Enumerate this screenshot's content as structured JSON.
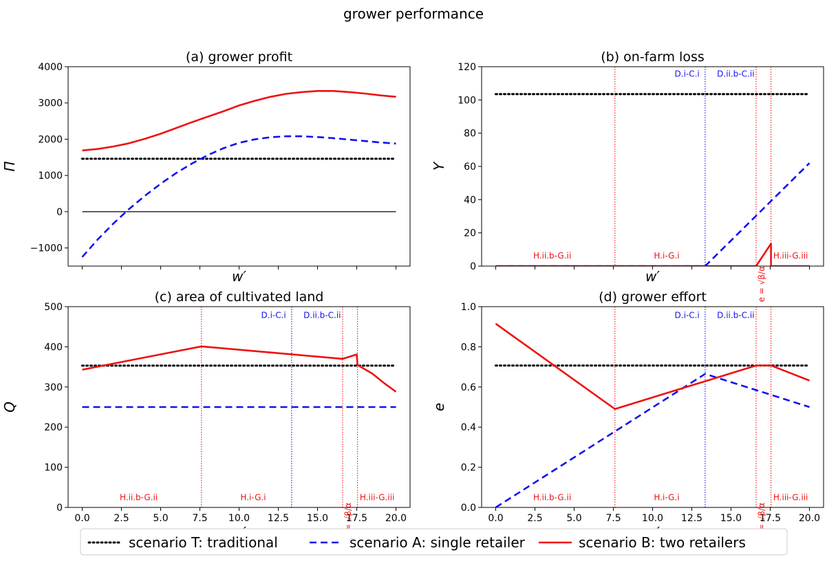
{
  "suptitle": "grower performance",
  "colors": {
    "traditional": "#000000",
    "single": "#1010ee",
    "two": "#ee1010"
  },
  "legend": [
    {
      "key": "traditional",
      "label": "scenario T: traditional",
      "style": "dotted"
    },
    {
      "key": "single",
      "label": "scenario A: single retailer",
      "style": "dashed"
    },
    {
      "key": "two",
      "label": "scenario B: two retailers",
      "style": "solid"
    }
  ],
  "chart_data": [
    {
      "id": "a",
      "type": "line",
      "title": "(a) grower profit",
      "xlabel": "w′",
      "ylabel": "Π",
      "xlim": [
        -0.9,
        20.9
      ],
      "ylim": [
        -1500,
        4000
      ],
      "yticks": [
        -1000,
        0,
        1000,
        2000,
        3000,
        4000
      ],
      "yticklabels": [
        "−1000",
        "0",
        "1000",
        "2000",
        "3000",
        "4000"
      ],
      "xticks": [
        0,
        2.5,
        5,
        7.5,
        10,
        12.5,
        15,
        17.5,
        20
      ],
      "show_xticklabels": false,
      "hlines": [
        {
          "y": 0,
          "color": "#000000",
          "width": 1.2
        }
      ],
      "series": [
        {
          "key": "traditional",
          "x": [
            0,
            20
          ],
          "y": [
            1460,
            1460
          ]
        },
        {
          "key": "single",
          "x": [
            0,
            1,
            2,
            3,
            4,
            5,
            6,
            7,
            8,
            9,
            10,
            11,
            12,
            13,
            14,
            15,
            16,
            17,
            18,
            19,
            20
          ],
          "y": [
            -1250,
            -760,
            -320,
            80,
            440,
            770,
            1070,
            1330,
            1560,
            1750,
            1900,
            1995,
            2055,
            2080,
            2080,
            2060,
            2030,
            1990,
            1950,
            1910,
            1880
          ]
        },
        {
          "key": "two",
          "x": [
            0,
            1,
            2,
            3,
            4,
            5,
            6,
            7,
            7.6,
            9,
            10,
            11,
            12,
            13,
            14,
            15,
            16,
            17,
            18,
            19,
            20
          ],
          "y": [
            1690,
            1730,
            1800,
            1890,
            2010,
            2150,
            2310,
            2470,
            2560,
            2770,
            2930,
            3060,
            3170,
            3250,
            3300,
            3330,
            3330,
            3300,
            3260,
            3210,
            3170
          ]
        }
      ],
      "vlines": [],
      "annotations": []
    },
    {
      "id": "b",
      "type": "line",
      "title": "(b) on-farm loss",
      "xlabel": "w′",
      "ylabel": "Y",
      "xlim": [
        -0.9,
        20.9
      ],
      "ylim": [
        0,
        120
      ],
      "yticks": [
        0,
        20,
        40,
        60,
        80,
        100,
        120
      ],
      "yticklabels": [
        "0",
        "20",
        "40",
        "60",
        "80",
        "100",
        "120"
      ],
      "xticks": [
        0,
        2.5,
        5,
        7.5,
        10,
        12.5,
        15,
        17.5,
        20
      ],
      "show_xticklabels": false,
      "hlines": [],
      "series": [
        {
          "key": "traditional",
          "x": [
            0,
            20
          ],
          "y": [
            103.5,
            103.5
          ]
        },
        {
          "key": "single",
          "x": [
            0,
            13.35,
            20
          ],
          "y": [
            0,
            0,
            62
          ]
        },
        {
          "key": "two",
          "x": [
            0,
            16.6,
            17.55,
            17.55,
            20
          ],
          "y": [
            0,
            0,
            13.5,
            0,
            0
          ]
        }
      ],
      "vlines": [
        {
          "x": 7.6,
          "color": "two"
        },
        {
          "x": 13.35,
          "color": "single"
        },
        {
          "x": 16.6,
          "color": "two"
        },
        {
          "x": 17.55,
          "color": "two"
        }
      ],
      "annotations": [
        {
          "text": "D.i-C.i",
          "x": 12.2,
          "y": 114,
          "color": "single"
        },
        {
          "text": "D.ii.b-C.ii",
          "x": 15.3,
          "y": 114,
          "color": "single"
        },
        {
          "text": "H.ii.b-G.ii",
          "x": 3.6,
          "y": 4.5,
          "color": "two"
        },
        {
          "text": "H.i-G.i",
          "x": 10.9,
          "y": 4.5,
          "color": "two"
        },
        {
          "text": "H.iii-G.iii",
          "x": 18.8,
          "y": 4.5,
          "color": "two"
        }
      ],
      "rotated_annotations": [
        {
          "text": "e = √β/α",
          "x": 16.95,
          "y": 0,
          "color": "two"
        }
      ]
    },
    {
      "id": "c",
      "type": "line",
      "title": "(c) area of cultivated land",
      "xlabel": "w′",
      "ylabel": "Q",
      "xlim": [
        -0.9,
        20.9
      ],
      "ylim": [
        0,
        500
      ],
      "yticks": [
        0,
        100,
        200,
        300,
        400,
        500
      ],
      "yticklabels": [
        "0",
        "100",
        "200",
        "300",
        "400",
        "500"
      ],
      "xticks": [
        0,
        2.5,
        5,
        7.5,
        10,
        12.5,
        15,
        17.5,
        20
      ],
      "xticklabels": [
        "0.0",
        "2.5",
        "5.0",
        "7.5",
        "10.0",
        "12.5",
        "15.0",
        "17.5",
        "20.0"
      ],
      "show_xticklabels": true,
      "hlines": [],
      "series": [
        {
          "key": "traditional",
          "x": [
            0,
            20
          ],
          "y": [
            353,
            353
          ]
        },
        {
          "key": "single",
          "x": [
            0,
            20
          ],
          "y": [
            250,
            250
          ]
        },
        {
          "key": "two",
          "x": [
            0,
            7.6,
            16.6,
            17.5,
            17.55,
            18.5,
            19.3,
            20
          ],
          "y": [
            343,
            401,
            370,
            381,
            355,
            333,
            308,
            288
          ]
        }
      ],
      "vlines": [
        {
          "x": 7.6,
          "color": "two"
        },
        {
          "x": 13.35,
          "color": "single"
        },
        {
          "x": 16.6,
          "color": "two"
        },
        {
          "x": 17.55,
          "color": "two"
        }
      ],
      "annotations": [
        {
          "text": "D.i-C.i",
          "x": 12.2,
          "y": 472,
          "color": "single"
        },
        {
          "text": "D.ii.b-C.ii",
          "x": 15.3,
          "y": 472,
          "color": "single"
        },
        {
          "text": "H.ii.b-G.ii",
          "x": 3.6,
          "y": 18,
          "color": "two"
        },
        {
          "text": "H.i-G.i",
          "x": 10.9,
          "y": 18,
          "color": "two"
        },
        {
          "text": "H.iii-G.iii",
          "x": 18.8,
          "y": 18,
          "color": "two"
        }
      ],
      "rotated_annotations": [
        {
          "text": "e = √β/α",
          "x": 16.95,
          "y": 12,
          "color": "two"
        }
      ]
    },
    {
      "id": "d",
      "type": "line",
      "title": "(d) grower effort",
      "xlabel": "w′",
      "ylabel": "e",
      "xlim": [
        -0.9,
        20.9
      ],
      "ylim": [
        0,
        1.0
      ],
      "yticks": [
        0,
        0.2,
        0.4,
        0.6,
        0.8,
        1.0
      ],
      "yticklabels": [
        "0.0",
        "0.2",
        "0.4",
        "0.6",
        "0.8",
        "1.0"
      ],
      "xticks": [
        0,
        2.5,
        5,
        7.5,
        10,
        12.5,
        15,
        17.5,
        20
      ],
      "xticklabels": [
        "0.0",
        "2.5",
        "5.0",
        "7.5",
        "10.0",
        "12.5",
        "15.0",
        "17.5",
        "20.0"
      ],
      "show_xticklabels": true,
      "hlines": [],
      "series": [
        {
          "key": "traditional",
          "x": [
            0,
            20
          ],
          "y": [
            0.707,
            0.707
          ]
        },
        {
          "key": "single",
          "x": [
            0,
            13.35,
            20
          ],
          "y": [
            0,
            0.665,
            0.5
          ]
        },
        {
          "key": "two",
          "x": [
            0,
            7.6,
            16.6,
            17.55,
            20
          ],
          "y": [
            0.915,
            0.49,
            0.707,
            0.707,
            0.632
          ]
        }
      ],
      "vlines": [
        {
          "x": 7.6,
          "color": "two"
        },
        {
          "x": 13.35,
          "color": "single"
        },
        {
          "x": 16.6,
          "color": "two"
        },
        {
          "x": 17.55,
          "color": "two"
        }
      ],
      "annotations": [
        {
          "text": "D.i-C.i",
          "x": 12.2,
          "y": 0.944,
          "color": "single"
        },
        {
          "text": "D.ii.b-C.ii",
          "x": 15.3,
          "y": 0.944,
          "color": "single"
        },
        {
          "text": "H.ii.b-G.ii",
          "x": 3.6,
          "y": 0.036,
          "color": "two"
        },
        {
          "text": "H.i-G.i",
          "x": 10.9,
          "y": 0.036,
          "color": "two"
        },
        {
          "text": "H.iii-G.iii",
          "x": 18.8,
          "y": 0.036,
          "color": "two"
        }
      ],
      "rotated_annotations": [
        {
          "text": "e = √β/α",
          "x": 16.95,
          "y": 0.024,
          "color": "two"
        }
      ]
    }
  ]
}
